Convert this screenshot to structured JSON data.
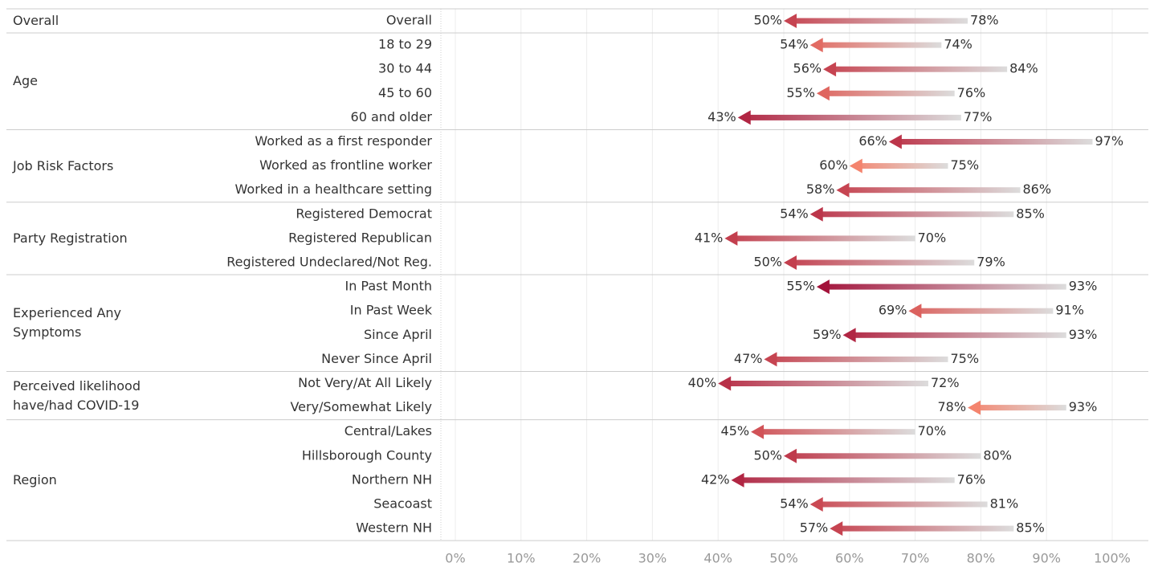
{
  "chart_data": {
    "type": "arrow",
    "groups": [
      {
        "name": "Overall",
        "categories": [
          "Overall"
        ],
        "values_from": [
          78
        ],
        "values_to": [
          50
        ],
        "value_labels_from": [
          "78%"
        ],
        "value_labels_to": [
          "50%"
        ]
      },
      {
        "name": "Age",
        "categories": [
          "18 to 29",
          "30 to 44",
          "45 to 60",
          "60 and older"
        ],
        "values_from": [
          74,
          84,
          76,
          77
        ],
        "values_to": [
          54,
          56,
          55,
          43
        ],
        "value_labels_from": [
          "74%",
          "84%",
          "76%",
          "77%"
        ],
        "value_labels_to": [
          "54%",
          "56%",
          "55%",
          "43%"
        ]
      },
      {
        "name": "Job Risk Factors",
        "categories": [
          "Worked as a first responder",
          "Worked as frontline worker",
          "Worked in a healthcare setting"
        ],
        "values_from": [
          97,
          75,
          86
        ],
        "values_to": [
          66,
          60,
          58
        ],
        "value_labels_from": [
          "97%",
          "75%",
          "86%"
        ],
        "value_labels_to": [
          "66%",
          "60%",
          "58%"
        ]
      },
      {
        "name": "Party Registration",
        "categories": [
          "Registered Democrat",
          "Registered Republican",
          "Registered Undeclared/Not Reg."
        ],
        "values_from": [
          85,
          70,
          79
        ],
        "values_to": [
          54,
          41,
          50
        ],
        "value_labels_from": [
          "85%",
          "70%",
          "79%"
        ],
        "value_labels_to": [
          "54%",
          "41%",
          "50%"
        ]
      },
      {
        "name": "Experienced Any Symptoms",
        "categories": [
          "In Past Month",
          "In Past Week",
          "Since April",
          "Never Since April"
        ],
        "values_from": [
          93,
          91,
          93,
          75
        ],
        "values_to": [
          55,
          69,
          59,
          47
        ],
        "value_labels_from": [
          "93%",
          "91%",
          "93%",
          "75%"
        ],
        "value_labels_to": [
          "55%",
          "69%",
          "59%",
          "47%"
        ]
      },
      {
        "name": "Perceived likelihood have/had COVID-19",
        "categories": [
          "Not Very/At All Likely",
          "Very/Somewhat Likely"
        ],
        "values_from": [
          72,
          93
        ],
        "values_to": [
          40,
          78
        ],
        "value_labels_from": [
          "72%",
          "93%"
        ],
        "value_labels_to": [
          "40%",
          "78%"
        ]
      },
      {
        "name": "Region",
        "categories": [
          "Central/Lakes",
          "Hillsborough County",
          "Northern NH",
          "Seacoast",
          "Western NH"
        ],
        "values_from": [
          70,
          80,
          76,
          81,
          85
        ],
        "values_to": [
          45,
          50,
          42,
          54,
          57
        ],
        "value_labels_from": [
          "70%",
          "80%",
          "76%",
          "81%",
          "85%"
        ],
        "value_labels_to": [
          "45%",
          "50%",
          "42%",
          "54%",
          "57%"
        ]
      }
    ],
    "xlim": [
      0,
      100
    ],
    "xticks": [
      {
        "value": 0,
        "label": "0%"
      },
      {
        "value": 10,
        "label": "10%"
      },
      {
        "value": 20,
        "label": "20%"
      },
      {
        "value": 30,
        "label": "30%"
      },
      {
        "value": 40,
        "label": "40%"
      },
      {
        "value": 50,
        "label": "50%"
      },
      {
        "value": 60,
        "label": "60%"
      },
      {
        "value": 70,
        "label": "70%"
      },
      {
        "value": 80,
        "label": "80%"
      },
      {
        "value": 90,
        "label": "90%"
      },
      {
        "value": 100,
        "label": "100%"
      }
    ],
    "grid": true,
    "color_low": "#f4846e",
    "color_high": "#a3123a",
    "track_color": "#dcdcdc"
  }
}
